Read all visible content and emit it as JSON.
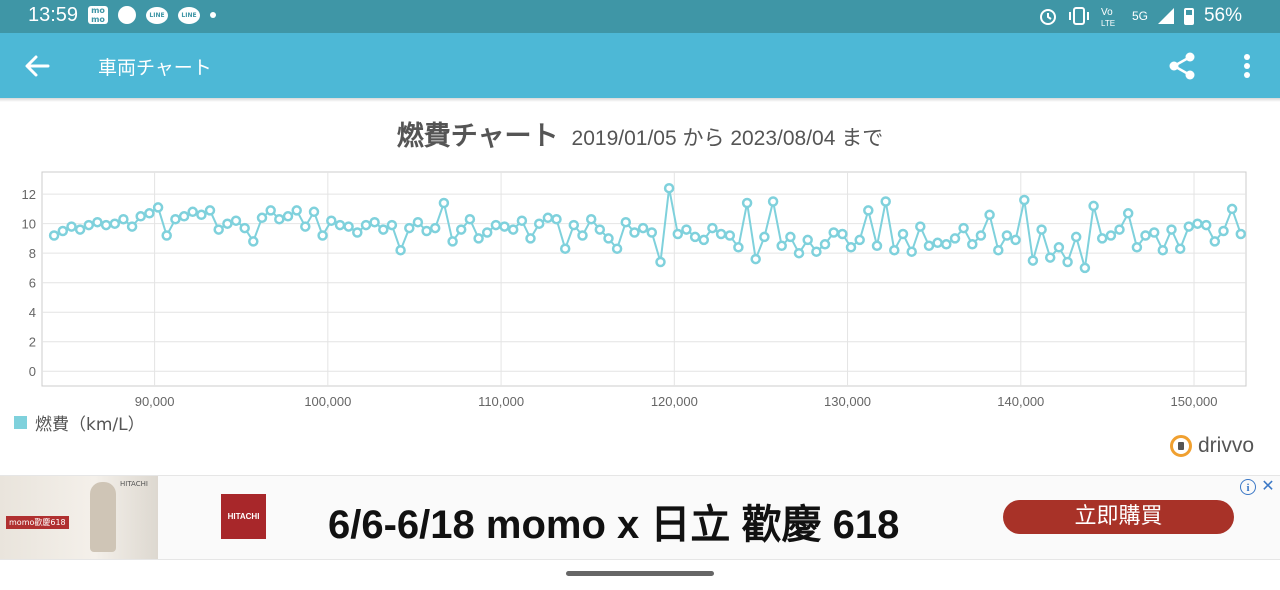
{
  "status_bar": {
    "time": "13:59",
    "network": "5G",
    "battery": "56%",
    "icons": [
      "momo-notification-icon",
      "circle-notification-icon",
      "line-notification-icon",
      "line-notification-icon",
      "more-notifications-dot",
      "alarm-icon",
      "vibrate-icon",
      "volte-icon",
      "signal-icon",
      "battery-icon"
    ]
  },
  "app_bar": {
    "title": "車両チャート",
    "icons": [
      "back-arrow-icon",
      "share-icon",
      "more-vert-icon"
    ]
  },
  "chart_header": {
    "title": "燃費チャート",
    "range": "2019/01/05 から 2023/08/04 まで"
  },
  "chart_data": {
    "type": "line",
    "title": "燃費チャート",
    "series": [
      {
        "name": "燃費（km/L）",
        "color": "#7fd1dc",
        "x": [
          84200,
          84700,
          85200,
          85700,
          86200,
          86700,
          87200,
          87700,
          88200,
          88700,
          89200,
          89700,
          90200,
          90700,
          91200,
          91700,
          92200,
          92700,
          93200,
          93700,
          94200,
          94700,
          95200,
          95700,
          96200,
          96700,
          97200,
          97700,
          98200,
          98700,
          99200,
          99700,
          100200,
          100700,
          101200,
          101700,
          102200,
          102700,
          103200,
          103700,
          104200,
          104700,
          105200,
          105700,
          106200,
          106700,
          107200,
          107700,
          108200,
          108700,
          109200,
          109700,
          110200,
          110700,
          111200,
          111700,
          112200,
          112700,
          113200,
          113700,
          114200,
          114700,
          115200,
          115700,
          116200,
          116700,
          117200,
          117700,
          118200,
          118700,
          119200,
          119700,
          120200,
          120700,
          121200,
          121700,
          122200,
          122700,
          123200,
          123700,
          124200,
          124700,
          125200,
          125700,
          126200,
          126700,
          127200,
          127700,
          128200,
          128700,
          129200,
          129700,
          130200,
          130700,
          131200,
          131700,
          132200,
          132700,
          133200,
          133700,
          134200,
          134700,
          135200,
          135700,
          136200,
          136700,
          137200,
          137700,
          138200,
          138700,
          139200,
          139700,
          140200,
          140700,
          141200,
          141700,
          142200,
          142700,
          143200,
          143700,
          144200,
          144700,
          145200,
          145700,
          146200,
          146700,
          147200,
          147700,
          148200,
          148700,
          149200,
          149700,
          150200,
          150700,
          151200,
          151700,
          152200,
          152700
        ],
        "values": [
          9.2,
          9.5,
          9.8,
          9.6,
          9.9,
          10.1,
          9.9,
          10.0,
          10.3,
          9.8,
          10.5,
          10.7,
          11.1,
          9.2,
          10.3,
          10.5,
          10.8,
          10.6,
          10.9,
          9.6,
          10.0,
          10.2,
          9.7,
          8.8,
          10.4,
          10.9,
          10.3,
          10.5,
          10.9,
          9.8,
          10.8,
          9.2,
          10.2,
          9.9,
          9.8,
          9.4,
          9.9,
          10.1,
          9.6,
          9.9,
          8.2,
          9.7,
          10.1,
          9.5,
          9.7,
          11.4,
          8.8,
          9.6,
          10.3,
          9.0,
          9.4,
          9.9,
          9.8,
          9.6,
          10.2,
          9.0,
          10.0,
          10.4,
          10.3,
          8.3,
          9.9,
          9.2,
          10.3,
          9.6,
          9.0,
          8.3,
          10.1,
          9.4,
          9.7,
          9.4,
          7.4,
          12.4,
          9.3,
          9.6,
          9.1,
          8.9,
          9.7,
          9.3,
          9.2,
          8.4,
          11.4,
          7.6,
          9.1,
          11.5,
          8.5,
          9.1,
          8.0,
          8.9,
          8.1,
          8.6,
          9.4,
          9.3,
          8.4,
          8.9,
          10.9,
          8.5,
          11.5,
          8.2,
          9.3,
          8.1,
          9.8,
          8.5,
          8.7,
          8.6,
          9.0,
          9.7,
          8.6,
          9.2,
          10.6,
          8.2,
          9.2,
          8.9,
          11.6,
          7.5,
          9.6,
          7.7,
          8.4,
          7.4,
          9.1,
          7.0,
          11.2,
          9.0,
          9.2,
          9.6,
          10.7,
          8.4,
          9.2,
          9.4,
          8.2,
          9.6,
          8.3,
          9.8,
          10.0,
          9.9,
          8.8,
          9.5,
          11.0,
          9.3
        ]
      }
    ],
    "xlim": [
      83500,
      153000
    ],
    "ylim": [
      -1,
      13.5
    ],
    "xticks": [
      90000,
      100000,
      110000,
      120000,
      130000,
      140000,
      150000
    ],
    "xtick_labels": [
      "90,000",
      "100,000",
      "110,000",
      "120,000",
      "130,000",
      "140,000",
      "150,000"
    ],
    "yticks": [
      0,
      2,
      4,
      6,
      8,
      10,
      12
    ],
    "ytick_labels": [
      "0",
      "2",
      "4",
      "6",
      "8",
      "10",
      "12"
    ],
    "grid": true,
    "legend_position": "bottom-left",
    "xlabel": "",
    "ylabel": ""
  },
  "legend": {
    "label": "燃費（km/L）"
  },
  "brand": {
    "name": "drivvo"
  },
  "ad": {
    "headline": "6/6-6/18 momo x 日立 歡慶 618",
    "cta_label": "立即購買",
    "logo_text": "HITACHI",
    "image_brand": "HITACHI",
    "image_tag": "momo歡慶618",
    "info_icon": "i",
    "close_icon": "✕"
  }
}
